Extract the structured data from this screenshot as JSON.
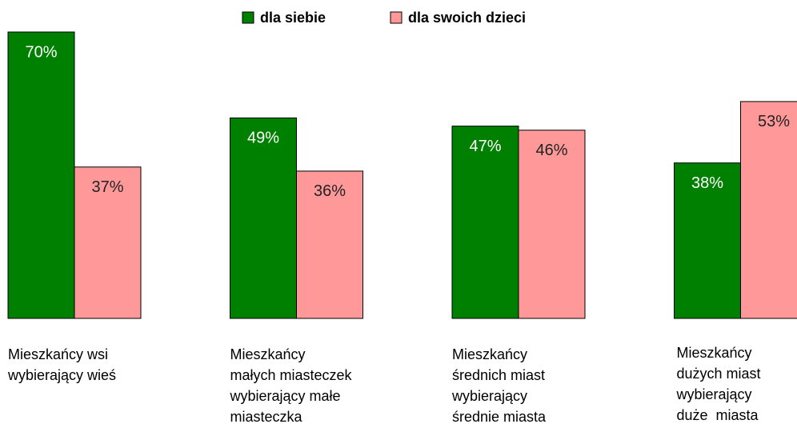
{
  "chart_data": {
    "type": "bar",
    "categories": [
      "Mieszkańcy wsi\nwybierający wieś",
      "Mieszkańcy\nmałych miasteczek\nwybierający małe\nmiasteczka",
      "Mieszkańcy\nśrednich miast\nwybierający\nśrednie miasta",
      "Mieszkańcy\ndużych miast\nwybierający\nduże  miasta"
    ],
    "series": [
      {
        "name": "dla siebie",
        "color": "#008000",
        "values": [
          70,
          49,
          47,
          38
        ],
        "value_labels": [
          "70%",
          "49%",
          "47%",
          "38%"
        ]
      },
      {
        "name": "dla swoich dzieci",
        "color": "#ff9999",
        "values": [
          37,
          36,
          46,
          53
        ],
        "value_labels": [
          "37%",
          "36%",
          "46%",
          "53%"
        ]
      }
    ],
    "legend": "top"
  }
}
